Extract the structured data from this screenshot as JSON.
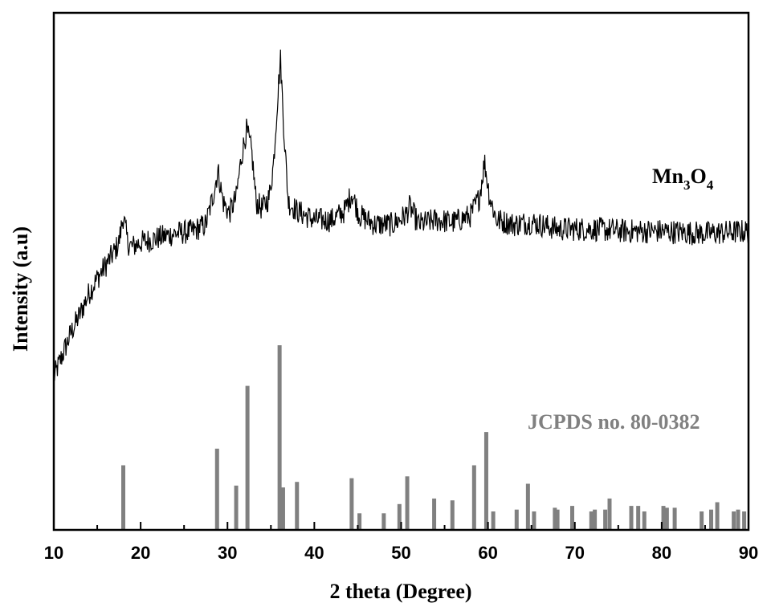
{
  "chart_data": {
    "type": "line",
    "xlabel": "2 theta (Degree)",
    "ylabel": "Intensity (a.u)",
    "xlim": [
      10,
      90
    ],
    "x_ticks": [
      10,
      20,
      30,
      40,
      50,
      60,
      70,
      80,
      90
    ],
    "grid": false,
    "annotations": {
      "sample": {
        "base": "Mn",
        "sub1": "3",
        "mid": "O",
        "sub2": "4"
      },
      "reference": "JCPDS no. 80-0382"
    },
    "colors": {
      "pattern": "#000000",
      "reference": "#808080"
    },
    "series": [
      {
        "kind": "measured pattern",
        "x": [
          10,
          11,
          12,
          13,
          14,
          15,
          16,
          17,
          17.5,
          18,
          18.5,
          19,
          20,
          22,
          24,
          26,
          27.5,
          28.3,
          28.9,
          29.5,
          30.2,
          31,
          31.6,
          32.2,
          32.8,
          33.3,
          34,
          34.8,
          35.3,
          35.7,
          36.1,
          36.5,
          37,
          38,
          40,
          42,
          43.5,
          44.3,
          45.2,
          47,
          49,
          50.5,
          51,
          52,
          54,
          56,
          58,
          59,
          59.6,
          60.2,
          61,
          63,
          65,
          68,
          72,
          76,
          80,
          85,
          90
        ],
        "intensity": [
          0.0,
          0.1,
          0.2,
          0.28,
          0.37,
          0.44,
          0.5,
          0.56,
          0.6,
          0.72,
          0.6,
          0.58,
          0.6,
          0.62,
          0.64,
          0.65,
          0.68,
          0.8,
          0.92,
          0.78,
          0.73,
          0.8,
          0.98,
          1.1,
          1.0,
          0.78,
          0.75,
          0.8,
          0.95,
          1.2,
          1.42,
          1.1,
          0.78,
          0.74,
          0.7,
          0.7,
          0.74,
          0.82,
          0.72,
          0.68,
          0.68,
          0.72,
          0.76,
          0.68,
          0.7,
          0.69,
          0.72,
          0.8,
          0.96,
          0.8,
          0.7,
          0.68,
          0.69,
          0.66,
          0.66,
          0.65,
          0.65,
          0.64,
          0.65
        ]
      },
      {
        "kind": "reference bars",
        "x": [
          18.0,
          28.8,
          31.0,
          32.3,
          36.0,
          36.4,
          38.0,
          44.3,
          45.2,
          48.0,
          49.8,
          50.7,
          53.8,
          55.9,
          58.4,
          59.8,
          60.6,
          63.3,
          64.6,
          65.3,
          67.7,
          68.0,
          69.7,
          71.9,
          72.3,
          73.5,
          74.0,
          76.5,
          77.3,
          78.0,
          80.2,
          80.6,
          81.5,
          84.6,
          85.7,
          86.4,
          88.3,
          88.8,
          89.5
        ],
        "intensity": [
          0.35,
          0.44,
          0.24,
          0.78,
          1.0,
          0.23,
          0.26,
          0.28,
          0.09,
          0.09,
          0.14,
          0.29,
          0.17,
          0.16,
          0.35,
          0.53,
          0.1,
          0.11,
          0.25,
          0.1,
          0.12,
          0.11,
          0.13,
          0.1,
          0.11,
          0.11,
          0.17,
          0.13,
          0.13,
          0.1,
          0.13,
          0.12,
          0.12,
          0.1,
          0.11,
          0.15,
          0.1,
          0.11,
          0.1
        ]
      }
    ]
  }
}
